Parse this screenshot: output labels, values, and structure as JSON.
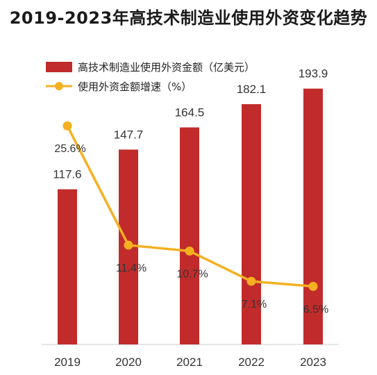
{
  "title": "2019-2023年高技术制造业使用外资变化趋势",
  "colors": {
    "bar": "#c12b2b",
    "line": "#f5b021",
    "text": "#333333",
    "axis": "#cccccc"
  },
  "chart_data": {
    "type": "bar",
    "categories": [
      "2019",
      "2020",
      "2021",
      "2022",
      "2023"
    ],
    "series": [
      {
        "name": "高技术制造业使用外资金额（亿美元）",
        "type": "bar",
        "values": [
          117.6,
          147.7,
          164.5,
          182.1,
          193.9
        ],
        "labels": [
          "117.6",
          "147.7",
          "164.5",
          "182.1",
          "193.9"
        ]
      },
      {
        "name": "使用外资金额增速（%）",
        "type": "line",
        "values": [
          25.6,
          11.4,
          10.7,
          7.1,
          6.5
        ],
        "labels": [
          "25.6%",
          "11.4%",
          "10.7%",
          "7.1%",
          "6.5%"
        ]
      }
    ],
    "legend_position": "top-left",
    "grid": false
  }
}
